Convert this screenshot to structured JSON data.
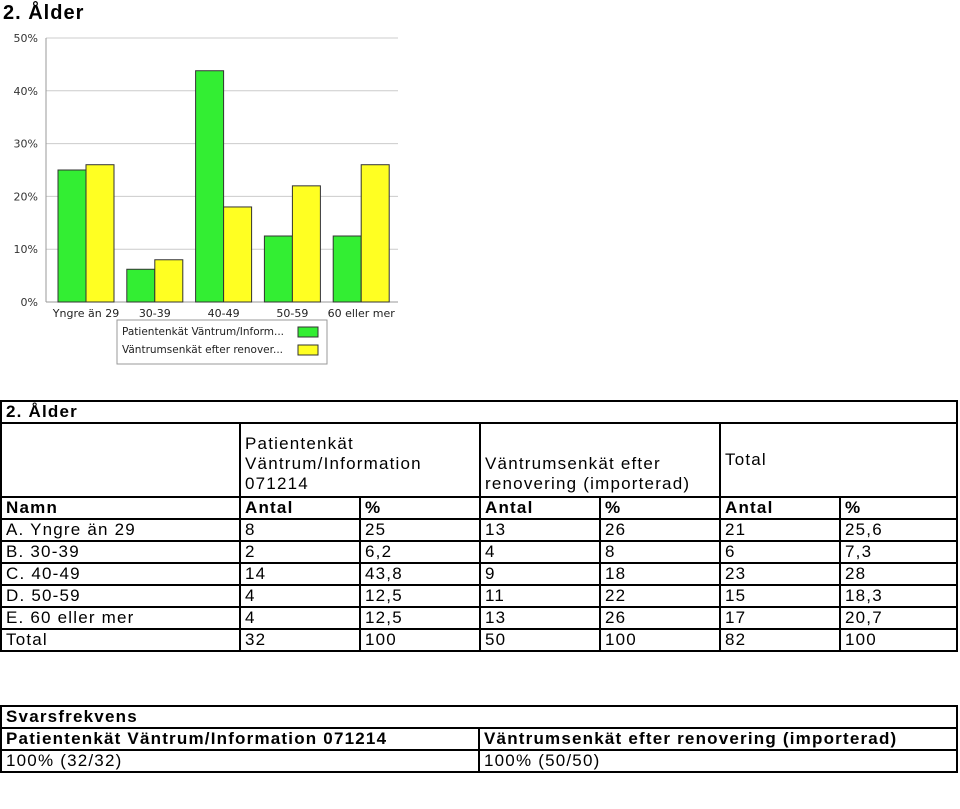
{
  "page_title": "2. Ålder",
  "chart_data": {
    "type": "bar",
    "categories": [
      "Yngre än 29",
      "30-39",
      "40-49",
      "50-59",
      "60 eller mer"
    ],
    "series": [
      {
        "name": "Patientenkät Väntrum/Inform...",
        "color": "#33ee33",
        "values": [
          25,
          6.2,
          43.8,
          12.5,
          12.5
        ]
      },
      {
        "name": "Väntrumsenkät efter renover...",
        "color": "#ffff22",
        "values": [
          26,
          8,
          18,
          22,
          26
        ]
      }
    ],
    "yticks": [
      "0%",
      "10%",
      "20%",
      "30%",
      "40%",
      "50%"
    ],
    "ylim": [
      0,
      50
    ],
    "grid": true,
    "legend_position": "bottom-left"
  },
  "table": {
    "title": "2. Ålder",
    "group_headers": {
      "a": "Patientenkät Väntrum/Information 071214",
      "b": "Väntrumsenkät efter renovering (importerad)",
      "total": "Total"
    },
    "columns": [
      "Namn",
      "Antal",
      "%",
      "Antal",
      "%",
      "Antal",
      "%"
    ],
    "rows": [
      [
        "A. Yngre än 29",
        "8",
        "25",
        "13",
        "26",
        "21",
        "25,6"
      ],
      [
        "B. 30-39",
        "2",
        "6,2",
        "4",
        "8",
        "6",
        "7,3"
      ],
      [
        "C. 40-49",
        "14",
        "43,8",
        "9",
        "18",
        "23",
        "28"
      ],
      [
        "D. 50-59",
        "4",
        "12,5",
        "11",
        "22",
        "15",
        "18,3"
      ],
      [
        "E. 60 eller mer",
        "4",
        "12,5",
        "13",
        "26",
        "17",
        "20,7"
      ],
      [
        "Total",
        "32",
        "100",
        "50",
        "100",
        "82",
        "100"
      ]
    ]
  },
  "response_rate": {
    "title": "Svarsfrekvens",
    "headers": [
      "Patientenkät Väntrum/Information 071214",
      "Väntrumsenkät efter renovering (importerad)"
    ],
    "values": [
      "100% (32/32)",
      "100% (50/50)"
    ]
  }
}
